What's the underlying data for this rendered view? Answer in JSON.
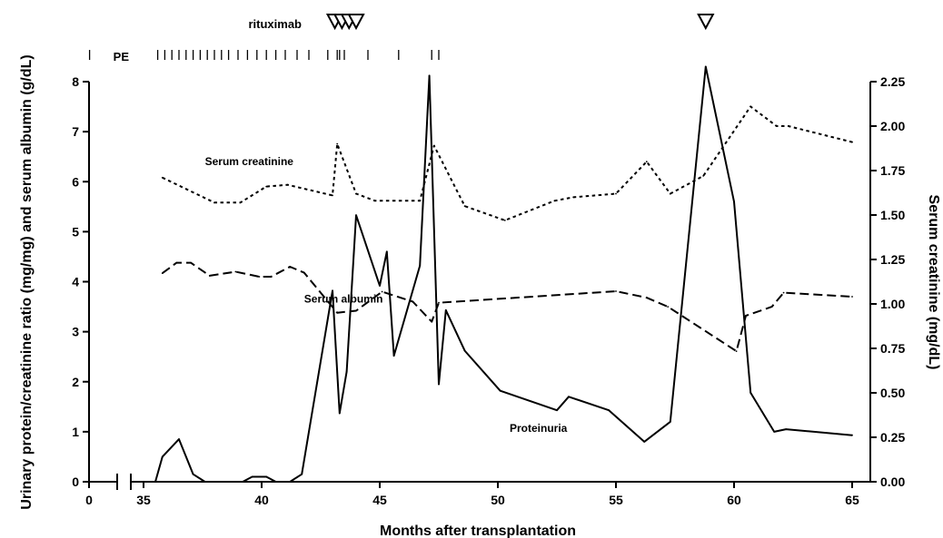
{
  "chart_data": {
    "type": "line",
    "xlabel": "Months after transplantation",
    "ylabel_left": "Urinary protein/creatinine ratio (mg/mg) and serum albumin (g/dL)",
    "ylabel_right": "Serum creatinine (mg/dL)",
    "x_ticks": [
      0,
      35,
      40,
      45,
      50,
      55,
      60,
      65
    ],
    "x_axis_break": true,
    "ylim_left": [
      0,
      8
    ],
    "y_ticks_left": [
      0,
      1,
      2,
      3,
      4,
      5,
      6,
      7,
      8
    ],
    "ylim_right": [
      0,
      2.25
    ],
    "y_ticks_right": [
      "0.00",
      "0.25",
      "0.50",
      "0.75",
      "1.00",
      "1.25",
      "1.50",
      "1.75",
      "2.00",
      "2.25"
    ],
    "grid": false,
    "rituximab_label": "rituximab",
    "pe_label": "PE",
    "rituximab_months": [
      43.1,
      43.4,
      43.7,
      44.0,
      58.8
    ],
    "pe_months": [
      0.4,
      35.6,
      35.9,
      36.2,
      36.5,
      36.8,
      37.1,
      37.4,
      37.7,
      38.0,
      38.3,
      38.6,
      39.0,
      39.4,
      39.8,
      40.2,
      40.6,
      41.0,
      41.5,
      42.0,
      42.8,
      43.2,
      43.3,
      43.5,
      44.5,
      45.8,
      47.2,
      47.5
    ],
    "series": [
      {
        "name": "Proteinuria",
        "axis": "left",
        "style": "solid",
        "label_at": {
          "x": 50.5,
          "y": 1.0
        },
        "points": [
          [
            35.5,
            0.0
          ],
          [
            35.8,
            0.5
          ],
          [
            36.5,
            0.85
          ],
          [
            37.1,
            0.15
          ],
          [
            37.6,
            0.0
          ],
          [
            39.2,
            0.0
          ],
          [
            39.6,
            0.1
          ],
          [
            40.2,
            0.1
          ],
          [
            40.6,
            0.0
          ],
          [
            41.2,
            0.0
          ],
          [
            41.7,
            0.15
          ],
          [
            43.0,
            3.82
          ],
          [
            43.3,
            1.37
          ],
          [
            43.6,
            2.2
          ],
          [
            44.0,
            5.33
          ],
          [
            45.0,
            3.92
          ],
          [
            45.3,
            4.6
          ],
          [
            45.6,
            2.52
          ],
          [
            46.7,
            4.32
          ],
          [
            47.1,
            8.12
          ],
          [
            47.5,
            1.95
          ],
          [
            47.8,
            3.43
          ],
          [
            48.6,
            2.62
          ],
          [
            50.1,
            1.82
          ],
          [
            52.5,
            1.43
          ],
          [
            53.0,
            1.7
          ],
          [
            54.7,
            1.43
          ],
          [
            56.2,
            0.8
          ],
          [
            57.3,
            1.2
          ],
          [
            58.8,
            8.3
          ],
          [
            60.0,
            5.6
          ],
          [
            60.7,
            1.78
          ],
          [
            61.7,
            1.0
          ],
          [
            62.2,
            1.05
          ],
          [
            65.0,
            0.93
          ]
        ]
      },
      {
        "name": "Serum albumin",
        "axis": "left",
        "style": "dashed",
        "label_at": {
          "x": 41.8,
          "y": 3.58
        },
        "points": [
          [
            35.8,
            4.17
          ],
          [
            36.4,
            4.38
          ],
          [
            37.0,
            4.38
          ],
          [
            37.8,
            4.12
          ],
          [
            38.9,
            4.2
          ],
          [
            39.9,
            4.1
          ],
          [
            40.4,
            4.1
          ],
          [
            41.2,
            4.3
          ],
          [
            41.8,
            4.18
          ],
          [
            43.2,
            3.38
          ],
          [
            44.0,
            3.42
          ],
          [
            45.1,
            3.8
          ],
          [
            46.4,
            3.6
          ],
          [
            47.2,
            3.2
          ],
          [
            47.5,
            3.58
          ],
          [
            55.0,
            3.81
          ],
          [
            56.3,
            3.68
          ],
          [
            57.2,
            3.5
          ],
          [
            60.1,
            2.61
          ],
          [
            60.5,
            3.32
          ],
          [
            61.6,
            3.5
          ],
          [
            62.1,
            3.78
          ],
          [
            65.0,
            3.7
          ]
        ]
      },
      {
        "name": "Serum creatinine",
        "axis": "right",
        "style": "dotted",
        "label_at": {
          "x": 37.6,
          "y": 1.78
        },
        "points": [
          [
            35.8,
            1.71
          ],
          [
            38.0,
            1.57
          ],
          [
            39.1,
            1.57
          ],
          [
            40.2,
            1.66
          ],
          [
            41.1,
            1.67
          ],
          [
            43.0,
            1.61
          ],
          [
            43.2,
            1.9
          ],
          [
            44.0,
            1.62
          ],
          [
            44.8,
            1.58
          ],
          [
            46.7,
            1.58
          ],
          [
            47.3,
            1.89
          ],
          [
            48.6,
            1.55
          ],
          [
            50.3,
            1.47
          ],
          [
            52.4,
            1.58
          ],
          [
            53.2,
            1.6
          ],
          [
            55.0,
            1.62
          ],
          [
            56.3,
            1.8
          ],
          [
            57.3,
            1.62
          ],
          [
            58.7,
            1.72
          ],
          [
            60.7,
            2.11
          ],
          [
            61.8,
            2.0
          ],
          [
            62.3,
            2.0
          ],
          [
            65.0,
            1.91
          ]
        ]
      }
    ]
  }
}
